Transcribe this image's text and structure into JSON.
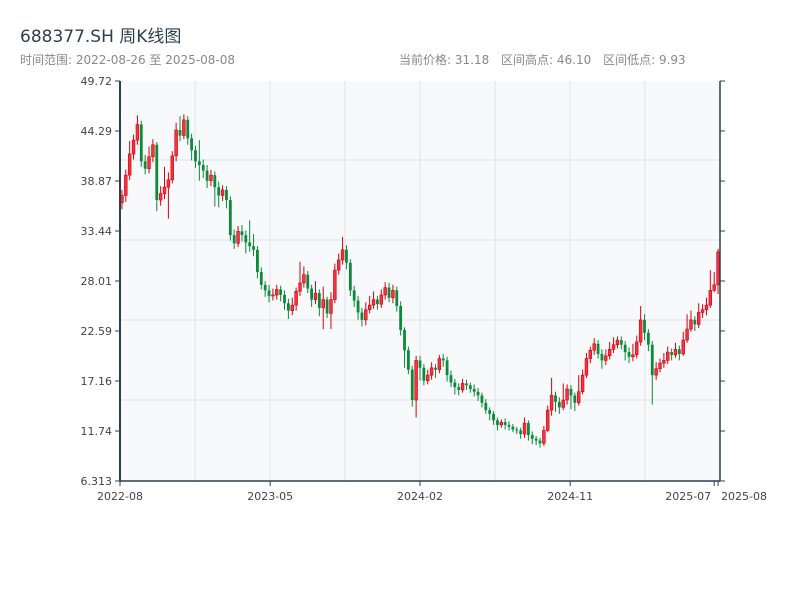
{
  "header": {
    "title": "688377.SH 周K线图",
    "range": "时间范围: 2022-08-26 至 2025-08-08",
    "current_price": "当前价格: 31.18",
    "high": "区间高点: 46.10",
    "low": "区间低点: 9.93"
  },
  "colors": {
    "up": "#d7000f",
    "up_fill": "#f0343f",
    "down": "#0a8a3a",
    "axis": "#2c3e50",
    "grid": "#e0e3e8",
    "plot_bg": "#f7f9fb"
  },
  "chart_data": {
    "type": "candlestick",
    "title": "688377.SH 周K线图",
    "xlabel": "",
    "ylabel": "",
    "ylim": [
      6.313,
      49.72
    ],
    "yticks": [
      "49.72",
      "44.29",
      "38.87",
      "33.44",
      "28.01",
      "22.59",
      "17.16",
      "11.74",
      "6.313"
    ],
    "xticks": [
      {
        "label": "2022-08",
        "index": 0
      },
      {
        "label": "2023-05",
        "index": 38.8
      },
      {
        "label": "2024-02",
        "index": 77.5
      },
      {
        "label": "2024-11",
        "index": 116.3
      },
      {
        "label": "2025-07",
        "index": 153.5
      },
      {
        "label": "2025-08",
        "index": 154.5
      }
    ],
    "grid": true,
    "candles_ohlc": [
      [
        36.5,
        37.9,
        35.8,
        37.3
      ],
      [
        37.3,
        40.1,
        36.6,
        39.5
      ],
      [
        39.5,
        43.2,
        39.0,
        41.8
      ],
      [
        41.8,
        43.9,
        41.2,
        43.3
      ],
      [
        43.3,
        46.0,
        42.8,
        45.0
      ],
      [
        45.0,
        45.4,
        40.4,
        41.0
      ],
      [
        41.0,
        41.7,
        39.6,
        40.2
      ],
      [
        40.2,
        42.6,
        39.7,
        41.5
      ],
      [
        41.5,
        43.4,
        40.9,
        42.8
      ],
      [
        42.8,
        43.1,
        35.6,
        36.8
      ],
      [
        36.8,
        38.3,
        36.2,
        37.5
      ],
      [
        37.5,
        40.4,
        36.9,
        38.2
      ],
      [
        38.2,
        39.8,
        34.8,
        39.0
      ],
      [
        39.0,
        42.1,
        38.6,
        41.6
      ],
      [
        41.6,
        45.2,
        41.0,
        44.4
      ],
      [
        44.4,
        45.9,
        43.2,
        43.8
      ],
      [
        43.8,
        46.1,
        43.4,
        45.5
      ],
      [
        45.5,
        45.9,
        42.8,
        43.5
      ],
      [
        43.5,
        44.0,
        41.1,
        42.2
      ],
      [
        42.2,
        42.7,
        40.3,
        41.0
      ],
      [
        41.0,
        43.3,
        38.9,
        40.6
      ],
      [
        40.6,
        41.2,
        39.2,
        40.0
      ],
      [
        40.0,
        40.6,
        38.1,
        38.9
      ],
      [
        38.9,
        40.1,
        38.3,
        39.5
      ],
      [
        39.5,
        39.9,
        36.1,
        38.2
      ],
      [
        38.2,
        38.8,
        36.0,
        37.3
      ],
      [
        37.3,
        38.4,
        36.7,
        37.9
      ],
      [
        37.9,
        38.3,
        35.9,
        36.8
      ],
      [
        36.8,
        37.2,
        32.4,
        33.0
      ],
      [
        33.0,
        33.6,
        31.5,
        32.1
      ],
      [
        32.1,
        34.0,
        31.7,
        33.4
      ],
      [
        33.4,
        34.1,
        32.3,
        33.0
      ],
      [
        33.0,
        33.5,
        31.0,
        32.2
      ],
      [
        32.2,
        34.6,
        31.2,
        31.8
      ],
      [
        31.8,
        33.1,
        30.7,
        31.4
      ],
      [
        31.4,
        31.8,
        28.3,
        29.0
      ],
      [
        29.0,
        29.5,
        27.1,
        27.6
      ],
      [
        27.6,
        28.0,
        26.3,
        27.0
      ],
      [
        27.0,
        27.6,
        25.7,
        26.4
      ],
      [
        26.4,
        27.2,
        25.9,
        26.5
      ],
      [
        26.5,
        27.6,
        26.0,
        27.1
      ],
      [
        27.1,
        27.5,
        25.8,
        26.5
      ],
      [
        26.5,
        27.0,
        24.9,
        25.6
      ],
      [
        25.6,
        26.1,
        23.9,
        24.8
      ],
      [
        24.8,
        26.2,
        24.3,
        25.4
      ],
      [
        25.4,
        27.3,
        24.8,
        26.9
      ],
      [
        26.9,
        30.1,
        26.4,
        27.8
      ],
      [
        27.8,
        29.6,
        27.3,
        28.7
      ],
      [
        28.7,
        29.1,
        26.7,
        27.2
      ],
      [
        27.2,
        27.6,
        25.2,
        26.0
      ],
      [
        26.0,
        28.0,
        25.5,
        26.7
      ],
      [
        26.7,
        27.1,
        24.2,
        25.1
      ],
      [
        25.1,
        27.4,
        22.8,
        26.0
      ],
      [
        26.0,
        26.3,
        24.0,
        24.5
      ],
      [
        24.5,
        26.8,
        22.8,
        26.0
      ],
      [
        26.0,
        29.9,
        25.6,
        29.2
      ],
      [
        29.2,
        31.0,
        28.7,
        30.3
      ],
      [
        30.3,
        32.8,
        29.8,
        31.4
      ],
      [
        31.4,
        31.9,
        29.3,
        30.0
      ],
      [
        30.0,
        30.4,
        26.4,
        27.0
      ],
      [
        27.0,
        27.5,
        25.2,
        25.9
      ],
      [
        25.9,
        26.4,
        23.8,
        24.6
      ],
      [
        24.6,
        25.1,
        23.1,
        23.8
      ],
      [
        23.8,
        25.7,
        23.2,
        24.9
      ],
      [
        24.9,
        26.4,
        24.5,
        25.4
      ],
      [
        25.4,
        26.9,
        25.0,
        26.0
      ],
      [
        26.0,
        26.4,
        24.9,
        25.5
      ],
      [
        25.5,
        27.1,
        25.1,
        26.5
      ],
      [
        26.5,
        27.9,
        26.0,
        27.3
      ],
      [
        27.3,
        27.8,
        25.7,
        26.2
      ],
      [
        26.2,
        27.6,
        25.6,
        27.0
      ],
      [
        27.0,
        27.4,
        24.7,
        25.3
      ],
      [
        25.3,
        25.8,
        22.1,
        22.7
      ],
      [
        22.7,
        23.0,
        18.6,
        20.5
      ],
      [
        20.5,
        20.9,
        17.9,
        18.4
      ],
      [
        18.4,
        18.8,
        14.4,
        15.1
      ],
      [
        15.1,
        19.9,
        13.2,
        19.4
      ],
      [
        19.4,
        19.9,
        17.2,
        18.6
      ],
      [
        18.6,
        19.0,
        16.7,
        17.2
      ],
      [
        17.2,
        18.4,
        16.8,
        17.8
      ],
      [
        17.8,
        19.2,
        17.3,
        18.6
      ],
      [
        18.6,
        19.0,
        17.5,
        18.4
      ],
      [
        18.4,
        20.0,
        18.0,
        19.6
      ],
      [
        19.6,
        20.1,
        18.7,
        19.4
      ],
      [
        19.4,
        19.8,
        17.1,
        17.8
      ],
      [
        17.8,
        18.3,
        16.5,
        17.0
      ],
      [
        17.0,
        17.4,
        15.7,
        16.5
      ],
      [
        16.5,
        16.9,
        15.6,
        16.2
      ],
      [
        16.2,
        17.4,
        15.9,
        16.9
      ],
      [
        16.9,
        17.3,
        16.2,
        16.7
      ],
      [
        16.7,
        17.0,
        15.9,
        16.3
      ],
      [
        16.3,
        16.8,
        15.5,
        16.0
      ],
      [
        16.0,
        16.4,
        15.0,
        15.6
      ],
      [
        15.6,
        15.9,
        14.3,
        14.8
      ],
      [
        14.8,
        15.2,
        13.6,
        14.0
      ],
      [
        14.0,
        14.3,
        12.9,
        13.6
      ],
      [
        13.6,
        13.9,
        12.4,
        12.9
      ],
      [
        12.9,
        13.2,
        11.8,
        12.4
      ],
      [
        12.4,
        13.0,
        12.1,
        12.7
      ],
      [
        12.7,
        13.1,
        11.9,
        12.4
      ],
      [
        12.4,
        12.8,
        11.8,
        12.2
      ],
      [
        12.2,
        12.5,
        11.6,
        11.9
      ],
      [
        11.9,
        12.2,
        11.4,
        11.8
      ],
      [
        11.8,
        12.1,
        10.9,
        11.4
      ],
      [
        11.4,
        13.2,
        11.0,
        12.6
      ],
      [
        12.6,
        12.9,
        10.7,
        11.3
      ],
      [
        11.3,
        11.7,
        10.3,
        10.9
      ],
      [
        10.9,
        11.2,
        10.2,
        10.7
      ],
      [
        10.7,
        11.0,
        9.93,
        10.4
      ],
      [
        10.4,
        12.3,
        10.1,
        11.8
      ],
      [
        11.8,
        14.5,
        11.6,
        14.0
      ],
      [
        14.0,
        17.5,
        13.4,
        15.6
      ],
      [
        15.6,
        16.0,
        13.8,
        14.9
      ],
      [
        14.9,
        15.4,
        13.6,
        14.3
      ],
      [
        14.3,
        16.9,
        14.0,
        15.1
      ],
      [
        15.1,
        16.8,
        14.6,
        16.3
      ],
      [
        16.3,
        16.7,
        14.1,
        15.6
      ],
      [
        15.6,
        15.9,
        13.9,
        14.8
      ],
      [
        14.8,
        17.8,
        14.5,
        16.0
      ],
      [
        16.0,
        18.4,
        15.7,
        17.8
      ],
      [
        17.8,
        20.2,
        17.5,
        19.6
      ],
      [
        19.6,
        20.9,
        19.1,
        20.5
      ],
      [
        20.5,
        21.8,
        20.0,
        21.2
      ],
      [
        21.2,
        21.6,
        19.6,
        20.1
      ],
      [
        20.1,
        20.6,
        18.5,
        19.4
      ],
      [
        19.4,
        20.6,
        18.9,
        19.9
      ],
      [
        19.9,
        21.4,
        19.5,
        20.6
      ],
      [
        20.6,
        21.9,
        20.2,
        21.1
      ],
      [
        21.1,
        22.0,
        20.7,
        21.6
      ],
      [
        21.6,
        22.0,
        20.6,
        21.1
      ],
      [
        21.1,
        21.5,
        19.4,
        20.3
      ],
      [
        20.3,
        20.8,
        19.1,
        19.8
      ],
      [
        19.8,
        21.2,
        19.3,
        20.0
      ],
      [
        20.0,
        22.1,
        19.6,
        21.4
      ],
      [
        21.4,
        25.3,
        21.0,
        23.8
      ],
      [
        23.8,
        24.4,
        21.6,
        22.4
      ],
      [
        22.4,
        22.8,
        20.4,
        21.1
      ],
      [
        21.1,
        21.5,
        14.6,
        17.8
      ],
      [
        17.8,
        19.2,
        17.3,
        18.5
      ],
      [
        18.5,
        19.6,
        18.1,
        19.1
      ],
      [
        19.1,
        20.2,
        18.6,
        19.4
      ],
      [
        19.4,
        20.9,
        19.0,
        20.3
      ],
      [
        20.3,
        20.7,
        19.4,
        20.0
      ],
      [
        20.0,
        21.3,
        19.7,
        20.6
      ],
      [
        20.6,
        21.0,
        19.4,
        20.1
      ],
      [
        20.1,
        22.5,
        19.9,
        21.6
      ],
      [
        21.6,
        24.4,
        21.3,
        22.8
      ],
      [
        22.8,
        24.8,
        22.5,
        23.8
      ],
      [
        23.8,
        24.2,
        22.6,
        23.3
      ],
      [
        23.3,
        25.6,
        22.9,
        24.6
      ],
      [
        24.6,
        25.5,
        24.0,
        24.9
      ],
      [
        24.9,
        26.2,
        24.3,
        25.4
      ],
      [
        25.4,
        29.2,
        25.1,
        27.0
      ],
      [
        27.0,
        29.0,
        26.8,
        27.6
      ],
      [
        27.6,
        31.5,
        26.6,
        31.18
      ]
    ]
  }
}
